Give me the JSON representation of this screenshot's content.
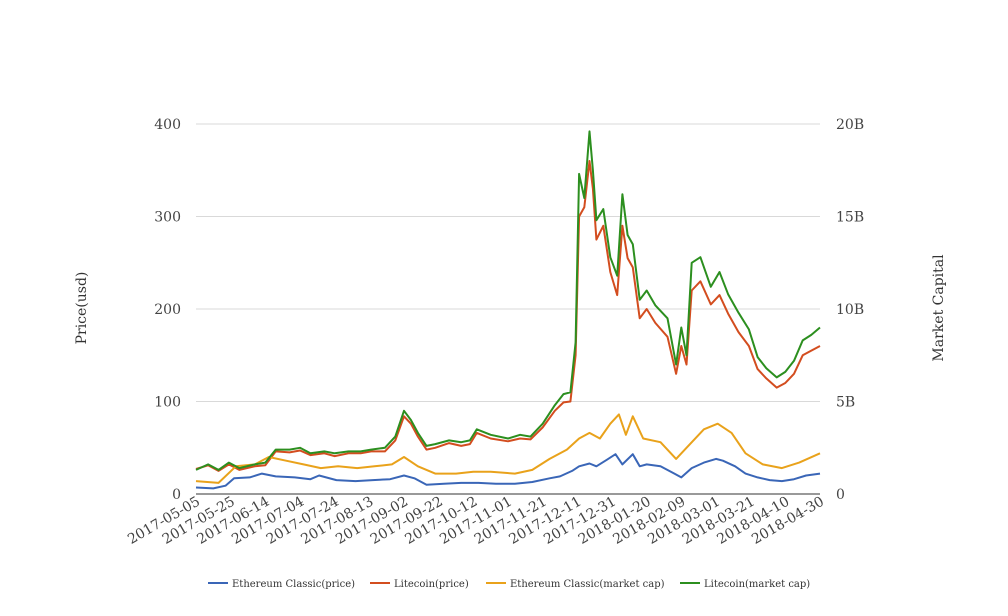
{
  "chart_data": {
    "type": "line",
    "left_axis_title": "Price(usd)",
    "right_axis_title": "Market Capital",
    "left_ticks": [
      "0",
      "100",
      "200",
      "300",
      "400"
    ],
    "left_range": [
      0,
      400
    ],
    "right_ticks": [
      "0",
      "5B",
      "10B",
      "15B",
      "20B"
    ],
    "right_range": [
      0,
      20
    ],
    "x_tick_labels": [
      "2017-05-05",
      "2017-05-25",
      "2017-06-14",
      "2017-07-04",
      "2017-07-24",
      "2017-08-13",
      "2017-09-02",
      "2017-09-22",
      "2017-10-12",
      "2017-11-01",
      "2017-11-21",
      "2017-12-11",
      "2017-12-31",
      "2018-01-20",
      "2018-02-09",
      "2018-03-01",
      "2018-03-21",
      "2018-04-10",
      "2018-04-30"
    ],
    "x_range": [
      "2017-05-05",
      "2018-04-30"
    ],
    "grid": true,
    "legend_position": "bottom",
    "series": [
      {
        "name": "Ethereum Classic(price)",
        "color": "#3a66b7",
        "axis": "left",
        "points": [
          [
            "2017-05-05",
            7
          ],
          [
            "2017-05-15",
            6
          ],
          [
            "2017-05-22",
            9
          ],
          [
            "2017-05-27",
            17
          ],
          [
            "2017-06-05",
            18
          ],
          [
            "2017-06-12",
            22
          ],
          [
            "2017-06-20",
            19
          ],
          [
            "2017-07-01",
            18
          ],
          [
            "2017-07-10",
            16
          ],
          [
            "2017-07-15",
            20
          ],
          [
            "2017-07-25",
            15
          ],
          [
            "2017-08-05",
            14
          ],
          [
            "2017-08-15",
            15
          ],
          [
            "2017-08-25",
            16
          ],
          [
            "2017-09-02",
            20
          ],
          [
            "2017-09-08",
            17
          ],
          [
            "2017-09-15",
            10
          ],
          [
            "2017-09-25",
            11
          ],
          [
            "2017-10-05",
            12
          ],
          [
            "2017-10-15",
            12
          ],
          [
            "2017-10-25",
            11
          ],
          [
            "2017-11-05",
            11
          ],
          [
            "2017-11-15",
            13
          ],
          [
            "2017-11-25",
            17
          ],
          [
            "2017-12-01",
            19
          ],
          [
            "2017-12-08",
            25
          ],
          [
            "2017-12-12",
            30
          ],
          [
            "2017-12-18",
            33
          ],
          [
            "2017-12-22",
            30
          ],
          [
            "2017-12-28",
            37
          ],
          [
            "2018-01-02",
            43
          ],
          [
            "2018-01-06",
            32
          ],
          [
            "2018-01-12",
            43
          ],
          [
            "2018-01-16",
            30
          ],
          [
            "2018-01-20",
            32
          ],
          [
            "2018-01-28",
            30
          ],
          [
            "2018-02-05",
            22
          ],
          [
            "2018-02-09",
            18
          ],
          [
            "2018-02-15",
            28
          ],
          [
            "2018-02-22",
            34
          ],
          [
            "2018-03-01",
            38
          ],
          [
            "2018-03-05",
            36
          ],
          [
            "2018-03-12",
            30
          ],
          [
            "2018-03-18",
            22
          ],
          [
            "2018-03-25",
            18
          ],
          [
            "2018-04-01",
            15
          ],
          [
            "2018-04-08",
            14
          ],
          [
            "2018-04-15",
            16
          ],
          [
            "2018-04-22",
            20
          ],
          [
            "2018-04-30",
            22
          ]
        ]
      },
      {
        "name": "Litecoin(price)",
        "color": "#d34d1f",
        "axis": "left",
        "points": [
          [
            "2017-05-05",
            27
          ],
          [
            "2017-05-12",
            31
          ],
          [
            "2017-05-18",
            25
          ],
          [
            "2017-05-24",
            32
          ],
          [
            "2017-05-30",
            26
          ],
          [
            "2017-06-08",
            30
          ],
          [
            "2017-06-14",
            31
          ],
          [
            "2017-06-20",
            46
          ],
          [
            "2017-06-28",
            45
          ],
          [
            "2017-07-04",
            47
          ],
          [
            "2017-07-10",
            42
          ],
          [
            "2017-07-18",
            44
          ],
          [
            "2017-07-24",
            41
          ],
          [
            "2017-08-01",
            44
          ],
          [
            "2017-08-08",
            44
          ],
          [
            "2017-08-14",
            46
          ],
          [
            "2017-08-22",
            46
          ],
          [
            "2017-08-28",
            58
          ],
          [
            "2017-09-02",
            84
          ],
          [
            "2017-09-06",
            76
          ],
          [
            "2017-09-10",
            62
          ],
          [
            "2017-09-15",
            48
          ],
          [
            "2017-09-20",
            50
          ],
          [
            "2017-09-28",
            55
          ],
          [
            "2017-10-05",
            52
          ],
          [
            "2017-10-10",
            54
          ],
          [
            "2017-10-14",
            66
          ],
          [
            "2017-10-22",
            60
          ],
          [
            "2017-11-01",
            57
          ],
          [
            "2017-11-08",
            60
          ],
          [
            "2017-11-14",
            59
          ],
          [
            "2017-11-21",
            72
          ],
          [
            "2017-11-28",
            90
          ],
          [
            "2017-12-03",
            99
          ],
          [
            "2017-12-07",
            100
          ],
          [
            "2017-12-10",
            150
          ],
          [
            "2017-12-12",
            300
          ],
          [
            "2017-12-15",
            310
          ],
          [
            "2017-12-18",
            360
          ],
          [
            "2017-12-20",
            330
          ],
          [
            "2017-12-22",
            275
          ],
          [
            "2017-12-26",
            290
          ],
          [
            "2017-12-30",
            240
          ],
          [
            "2018-01-03",
            215
          ],
          [
            "2018-01-06",
            290
          ],
          [
            "2018-01-09",
            255
          ],
          [
            "2018-01-12",
            245
          ],
          [
            "2018-01-16",
            190
          ],
          [
            "2018-01-20",
            200
          ],
          [
            "2018-01-25",
            185
          ],
          [
            "2018-02-01",
            170
          ],
          [
            "2018-02-06",
            130
          ],
          [
            "2018-02-09",
            160
          ],
          [
            "2018-02-12",
            140
          ],
          [
            "2018-02-15",
            220
          ],
          [
            "2018-02-20",
            230
          ],
          [
            "2018-02-26",
            205
          ],
          [
            "2018-03-03",
            215
          ],
          [
            "2018-03-08",
            195
          ],
          [
            "2018-03-14",
            175
          ],
          [
            "2018-03-20",
            160
          ],
          [
            "2018-03-25",
            135
          ],
          [
            "2018-03-30",
            125
          ],
          [
            "2018-04-05",
            115
          ],
          [
            "2018-04-10",
            120
          ],
          [
            "2018-04-15",
            130
          ],
          [
            "2018-04-20",
            150
          ],
          [
            "2018-04-25",
            155
          ],
          [
            "2018-04-30",
            160
          ]
        ]
      },
      {
        "name": "Ethereum Classic(market cap)",
        "color": "#e9a21b",
        "axis": "right",
        "points": [
          [
            "2017-05-05",
            0.7
          ],
          [
            "2017-05-18",
            0.6
          ],
          [
            "2017-05-28",
            1.5
          ],
          [
            "2017-06-08",
            1.6
          ],
          [
            "2017-06-16",
            2.0
          ],
          [
            "2017-06-26",
            1.8
          ],
          [
            "2017-07-06",
            1.6
          ],
          [
            "2017-07-16",
            1.4
          ],
          [
            "2017-07-26",
            1.5
          ],
          [
            "2017-08-06",
            1.4
          ],
          [
            "2017-08-16",
            1.5
          ],
          [
            "2017-08-26",
            1.6
          ],
          [
            "2017-09-02",
            2.0
          ],
          [
            "2017-09-10",
            1.5
          ],
          [
            "2017-09-20",
            1.1
          ],
          [
            "2017-10-02",
            1.1
          ],
          [
            "2017-10-12",
            1.2
          ],
          [
            "2017-10-22",
            1.2
          ],
          [
            "2017-11-05",
            1.1
          ],
          [
            "2017-11-15",
            1.3
          ],
          [
            "2017-11-25",
            1.9
          ],
          [
            "2017-12-05",
            2.4
          ],
          [
            "2017-12-12",
            3.0
          ],
          [
            "2017-12-18",
            3.3
          ],
          [
            "2017-12-24",
            3.0
          ],
          [
            "2017-12-30",
            3.8
          ],
          [
            "2018-01-04",
            4.3
          ],
          [
            "2018-01-08",
            3.2
          ],
          [
            "2018-01-12",
            4.2
          ],
          [
            "2018-01-18",
            3.0
          ],
          [
            "2018-01-28",
            2.8
          ],
          [
            "2018-02-06",
            1.9
          ],
          [
            "2018-02-12",
            2.5
          ],
          [
            "2018-02-22",
            3.5
          ],
          [
            "2018-03-02",
            3.8
          ],
          [
            "2018-03-10",
            3.3
          ],
          [
            "2018-03-18",
            2.2
          ],
          [
            "2018-03-28",
            1.6
          ],
          [
            "2018-04-08",
            1.4
          ],
          [
            "2018-04-18",
            1.7
          ],
          [
            "2018-04-30",
            2.2
          ]
        ]
      },
      {
        "name": "Litecoin(market cap)",
        "color": "#2c8f1f",
        "axis": "right",
        "points": [
          [
            "2017-05-05",
            1.3
          ],
          [
            "2017-05-12",
            1.6
          ],
          [
            "2017-05-18",
            1.3
          ],
          [
            "2017-05-24",
            1.7
          ],
          [
            "2017-05-30",
            1.4
          ],
          [
            "2017-06-08",
            1.6
          ],
          [
            "2017-06-14",
            1.7
          ],
          [
            "2017-06-20",
            2.4
          ],
          [
            "2017-06-28",
            2.4
          ],
          [
            "2017-07-04",
            2.5
          ],
          [
            "2017-07-10",
            2.2
          ],
          [
            "2017-07-18",
            2.3
          ],
          [
            "2017-07-24",
            2.2
          ],
          [
            "2017-08-01",
            2.3
          ],
          [
            "2017-08-08",
            2.3
          ],
          [
            "2017-08-14",
            2.4
          ],
          [
            "2017-08-22",
            2.5
          ],
          [
            "2017-08-28",
            3.1
          ],
          [
            "2017-09-02",
            4.5
          ],
          [
            "2017-09-06",
            4.0
          ],
          [
            "2017-09-10",
            3.3
          ],
          [
            "2017-09-15",
            2.6
          ],
          [
            "2017-09-20",
            2.7
          ],
          [
            "2017-09-28",
            2.9
          ],
          [
            "2017-10-05",
            2.8
          ],
          [
            "2017-10-10",
            2.9
          ],
          [
            "2017-10-14",
            3.5
          ],
          [
            "2017-10-22",
            3.2
          ],
          [
            "2017-11-01",
            3.0
          ],
          [
            "2017-11-08",
            3.2
          ],
          [
            "2017-11-14",
            3.1
          ],
          [
            "2017-11-21",
            3.8
          ],
          [
            "2017-11-28",
            4.8
          ],
          [
            "2017-12-03",
            5.4
          ],
          [
            "2017-12-07",
            5.5
          ],
          [
            "2017-12-10",
            8.2
          ],
          [
            "2017-12-12",
            17.3
          ],
          [
            "2017-12-15",
            16.0
          ],
          [
            "2017-12-18",
            19.6
          ],
          [
            "2017-12-20",
            17.5
          ],
          [
            "2017-12-22",
            14.8
          ],
          [
            "2017-12-26",
            15.4
          ],
          [
            "2017-12-30",
            12.8
          ],
          [
            "2018-01-03",
            11.8
          ],
          [
            "2018-01-06",
            16.2
          ],
          [
            "2018-01-09",
            14.0
          ],
          [
            "2018-01-12",
            13.5
          ],
          [
            "2018-01-16",
            10.5
          ],
          [
            "2018-01-20",
            11.0
          ],
          [
            "2018-01-25",
            10.2
          ],
          [
            "2018-02-01",
            9.5
          ],
          [
            "2018-02-06",
            7.0
          ],
          [
            "2018-02-09",
            9.0
          ],
          [
            "2018-02-12",
            7.5
          ],
          [
            "2018-02-15",
            12.5
          ],
          [
            "2018-02-20",
            12.8
          ],
          [
            "2018-02-26",
            11.2
          ],
          [
            "2018-03-03",
            12.0
          ],
          [
            "2018-03-08",
            10.8
          ],
          [
            "2018-03-14",
            9.8
          ],
          [
            "2018-03-20",
            8.9
          ],
          [
            "2018-03-25",
            7.4
          ],
          [
            "2018-03-30",
            6.8
          ],
          [
            "2018-04-05",
            6.3
          ],
          [
            "2018-04-10",
            6.6
          ],
          [
            "2018-04-15",
            7.2
          ],
          [
            "2018-04-20",
            8.3
          ],
          [
            "2018-04-25",
            8.6
          ],
          [
            "2018-04-30",
            9.0
          ]
        ]
      }
    ]
  }
}
